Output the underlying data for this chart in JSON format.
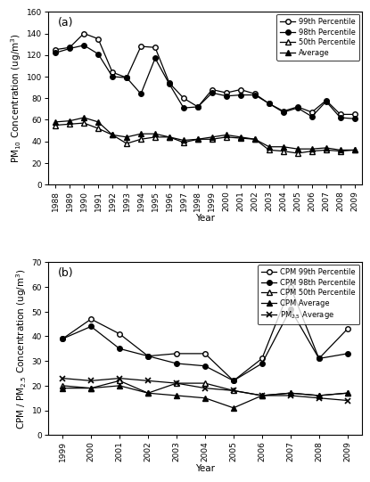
{
  "panel_a": {
    "years": [
      1988,
      1989,
      1990,
      1991,
      1992,
      1993,
      1994,
      1995,
      1996,
      1997,
      1998,
      1999,
      2000,
      2001,
      2002,
      2003,
      2004,
      2005,
      2006,
      2007,
      2008,
      2009
    ],
    "p99": [
      125,
      127,
      140,
      135,
      104,
      99,
      128,
      127,
      94,
      80,
      72,
      88,
      85,
      88,
      84,
      75,
      68,
      72,
      67,
      78,
      65,
      65
    ],
    "p98": [
      122,
      126,
      129,
      121,
      100,
      99,
      84,
      117,
      93,
      71,
      72,
      85,
      82,
      83,
      83,
      75,
      67,
      71,
      63,
      77,
      62,
      61
    ],
    "p50": [
      55,
      56,
      57,
      52,
      46,
      38,
      42,
      44,
      44,
      39,
      42,
      42,
      44,
      43,
      42,
      32,
      31,
      29,
      31,
      32,
      31,
      32
    ],
    "avg": [
      58,
      59,
      62,
      58,
      46,
      44,
      47,
      47,
      44,
      41,
      42,
      44,
      46,
      44,
      42,
      35,
      35,
      33,
      33,
      34,
      32,
      32
    ],
    "ylim": [
      0,
      160
    ],
    "yticks": [
      0,
      20,
      40,
      60,
      80,
      100,
      120,
      140,
      160
    ],
    "ylabel": "PM$_{10}$ Concentration (ug/m$^3$)",
    "legend": [
      "99th Percentile",
      "98th Percentile",
      "50th Percentile",
      "Average"
    ],
    "label": "(a)"
  },
  "panel_b": {
    "years": [
      1999,
      2000,
      2001,
      2002,
      2003,
      2004,
      2005,
      2006,
      2007,
      2008,
      2009
    ],
    "p99": [
      39,
      47,
      41,
      32,
      33,
      33,
      22,
      31,
      60,
      31,
      43
    ],
    "p98": [
      39,
      44,
      35,
      32,
      29,
      28,
      22,
      29,
      51,
      31,
      33
    ],
    "p50": [
      20,
      19,
      22,
      17,
      21,
      21,
      18,
      16,
      17,
      16,
      17
    ],
    "avg_cpm": [
      19,
      19,
      20,
      17,
      16,
      15,
      11,
      16,
      17,
      16,
      17
    ],
    "avg_pm25": [
      23,
      22,
      23,
      22,
      21,
      19,
      18,
      16,
      16,
      15,
      14
    ],
    "ylim": [
      0,
      70
    ],
    "yticks": [
      0,
      10,
      20,
      30,
      40,
      50,
      60,
      70
    ],
    "ylabel": "CPM / PM$_{2.5}$ Concentration (ug/m$^3$)",
    "legend": [
      "CPM 99th Percentile",
      "CPM 98th Percentile",
      "CPM 50th Percentile",
      "CPM Average",
      "PM$_{2.5}$ Average"
    ],
    "label": "(b)"
  },
  "background_color": "#ffffff",
  "xlabel": "Year",
  "tick_fontsize": 6.5,
  "label_fontsize": 7.5,
  "legend_fontsize": 6.0,
  "panel_label_fontsize": 9,
  "markersize": 4,
  "linewidth": 0.9
}
